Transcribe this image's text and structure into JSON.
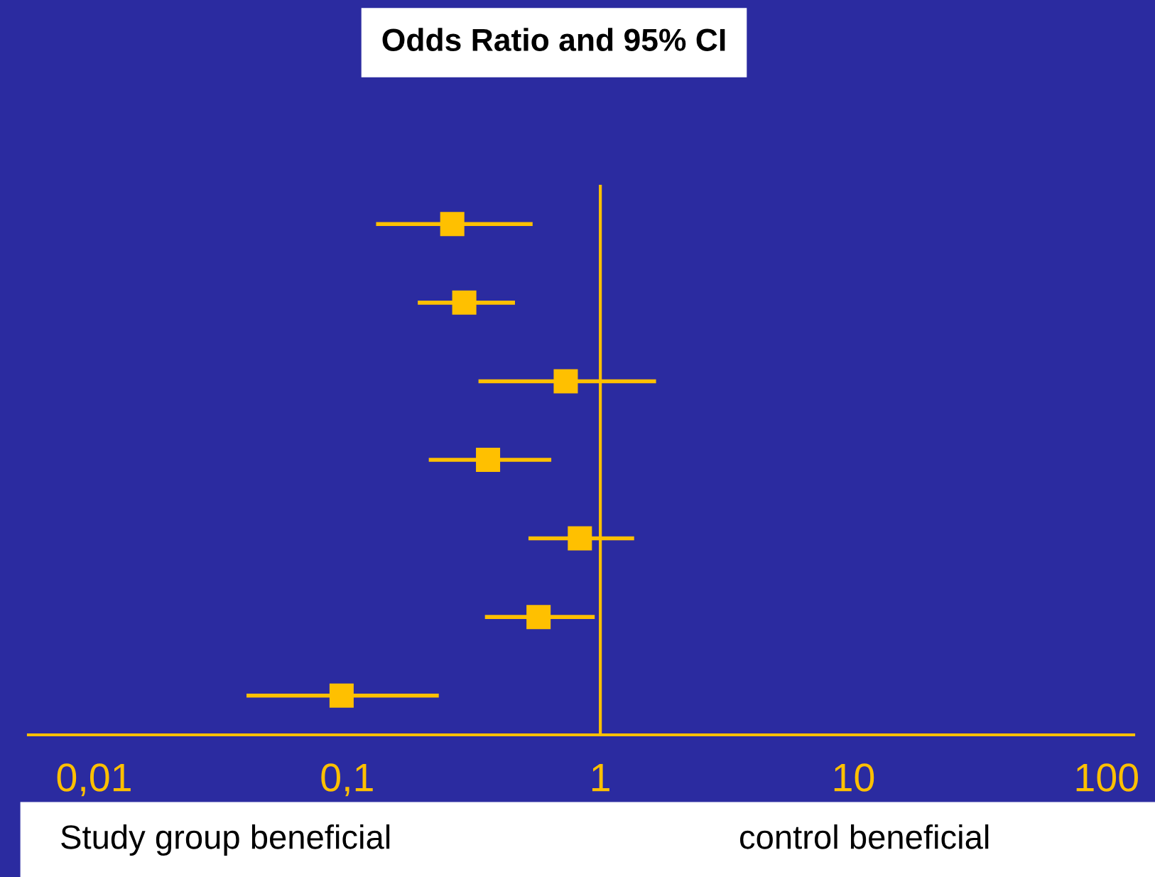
{
  "chart_data": {
    "type": "scatter",
    "title": "Odds Ratio and 95% CI",
    "orientation": "horizontal",
    "log": "x",
    "categories": [
      null,
      null,
      null,
      null,
      null,
      null,
      null
    ],
    "series": [
      {
        "color": "#ffc000",
        "values": [
          0.26,
          0.29,
          0.73,
          0.36,
          0.83,
          0.57,
          0.095
        ],
        "errors": [
          [
            0.13,
            0.54
          ],
          [
            0.19,
            0.46
          ],
          [
            0.33,
            1.66
          ],
          [
            0.21,
            0.64
          ],
          [
            0.52,
            1.36
          ],
          [
            0.35,
            0.95
          ],
          [
            0.04,
            0.23
          ]
        ]
      }
    ],
    "xlim": [
      0.0055,
      128
    ],
    "xticks": [
      {
        "value": 0.01,
        "label": "0,01"
      },
      {
        "value": 0.1,
        "label": "0,1"
      },
      1,
      10,
      100
    ],
    "ref_lines": [
      {
        "axis": "x",
        "value": 1,
        "color": "#ffc000"
      }
    ],
    "marker": "square",
    "grid": false,
    "legend": false,
    "annotations": [
      "Study group beneficial",
      "control beneficial"
    ]
  }
}
